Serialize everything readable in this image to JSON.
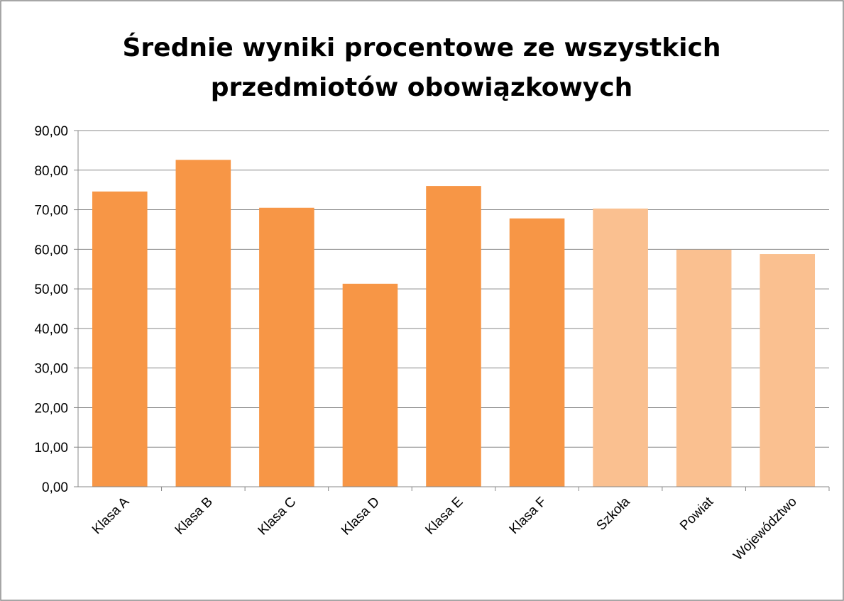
{
  "chart_data": {
    "type": "bar",
    "title": "Średnie wyniki procentowe ze wszystkich przedmiotów obowiązkowych",
    "categories": [
      "Klasa A",
      "Klasa B",
      "Klasa C",
      "Klasa D",
      "Klasa E",
      "Klasa F",
      "Szkoła",
      "Powiat",
      "Województwo"
    ],
    "values": [
      74.6,
      82.6,
      70.5,
      51.3,
      76.0,
      67.8,
      70.3,
      59.9,
      58.8
    ],
    "colors": [
      "#f79646",
      "#f79646",
      "#f79646",
      "#f79646",
      "#f79646",
      "#f79646",
      "#fac090",
      "#fac090",
      "#fac090"
    ],
    "ylim": [
      0,
      90
    ],
    "yticks": [
      {
        "value": 0,
        "label": "0,00"
      },
      {
        "value": 10,
        "label": "10,00"
      },
      {
        "value": 20,
        "label": "20,00"
      },
      {
        "value": 30,
        "label": "30,00"
      },
      {
        "value": 40,
        "label": "40,00"
      },
      {
        "value": 50,
        "label": "50,00"
      },
      {
        "value": 60,
        "label": "60,00"
      },
      {
        "value": 70,
        "label": "70,00"
      },
      {
        "value": 80,
        "label": "80,00"
      },
      {
        "value": 90,
        "label": "90,00"
      }
    ],
    "grid": true
  }
}
